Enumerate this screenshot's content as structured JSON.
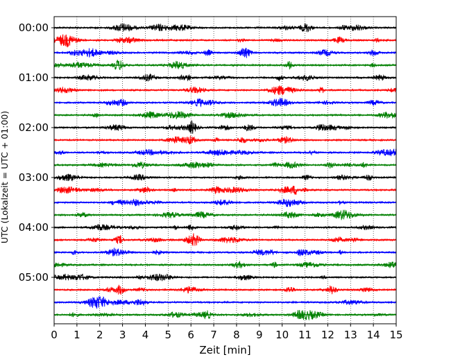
{
  "chart_data": {
    "type": "line",
    "xlabel": "Zeit  [min]",
    "ylabel": "UTC (Lokalzeit = UTC + 01:00)",
    "xlim": [
      0,
      15
    ],
    "xticks": [
      0,
      1,
      2,
      3,
      4,
      5,
      6,
      7,
      8,
      9,
      10,
      11,
      12,
      13,
      14,
      15
    ],
    "xtick_labels": [
      "0",
      "1",
      "2",
      "3",
      "4",
      "5",
      "6",
      "7",
      "8",
      "9",
      "10",
      "11",
      "12",
      "13",
      "14",
      "15"
    ],
    "ytick_labels": [
      "00:00",
      "01:00",
      "02:00",
      "03:00",
      "04:00",
      "05:00"
    ],
    "ytick_positions_min": [
      0,
      60,
      120,
      180,
      240,
      300
    ],
    "trace_interval_min": 15,
    "trace_start_times": [
      "00:00",
      "00:15",
      "00:30",
      "00:45",
      "01:00",
      "01:15",
      "01:30",
      "01:45",
      "02:00",
      "02:15",
      "02:30",
      "02:45",
      "03:00",
      "03:15",
      "03:30",
      "03:45",
      "04:00",
      "04:15",
      "04:30",
      "04:45",
      "05:00",
      "05:15",
      "05:30",
      "05:45"
    ],
    "trace_color_cycle": [
      "#000000",
      "#ff0000",
      "#0000ff",
      "#008000"
    ],
    "x_grid": true,
    "x_grid_style": "dotted",
    "y_grid": false
  }
}
